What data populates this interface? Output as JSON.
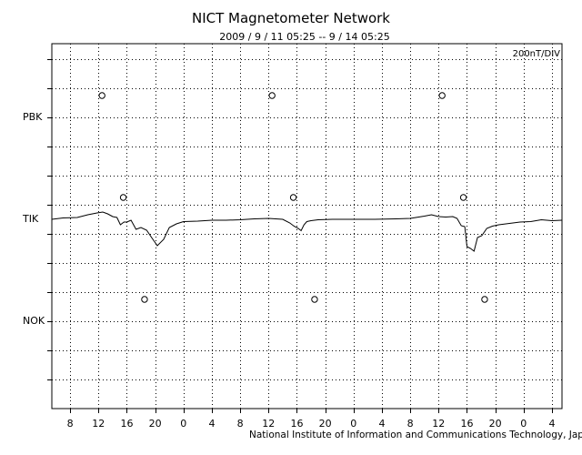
{
  "header": {
    "title": "NICT Magnetometer Network",
    "subtitle": "2009 / 9 / 11   05:25 --  9 / 14   05:25",
    "scale": "200nT/DIV",
    "credit": "National Institute of Information and Communications Technology, Japan"
  },
  "chart_data": {
    "type": "line",
    "title": "NICT Magnetometer Network",
    "subtitle": "2009 / 9 / 11   05:25 --  9 / 14   05:25",
    "scale_label": "200nT/DIV",
    "x_tick_labels": [
      "8",
      "12",
      "16",
      "20",
      "0",
      "4",
      "8",
      "12",
      "16",
      "20",
      "0",
      "4",
      "8",
      "12",
      "16",
      "20",
      "0",
      "4"
    ],
    "x_range_hours": [
      5.4167,
      77.4167
    ],
    "x_tick_hours": [
      8,
      12,
      16,
      20,
      24,
      28,
      32,
      36,
      40,
      44,
      48,
      52,
      56,
      60,
      64,
      68,
      72,
      76
    ],
    "stations": [
      "PBK",
      "TIK",
      "NOK"
    ],
    "grid": true,
    "midnight_markers": {
      "PBK": [
        12.5,
        36.5,
        60.5
      ],
      "TIK": [
        15.5,
        39.5,
        63.5
      ],
      "NOK": [
        18.5,
        42.5,
        66.5
      ]
    },
    "series": [
      {
        "name": "TIK",
        "x": [
          5.4,
          7,
          9,
          10.5,
          11.8,
          12.6,
          13.3,
          14,
          14.6,
          15.1,
          15.6,
          16,
          16.6,
          17.3,
          18,
          18.8,
          19.5,
          20.3,
          21.2,
          22,
          23,
          24,
          26,
          28,
          30,
          32,
          34,
          36,
          38,
          39,
          39.6,
          40.2,
          40.6,
          41,
          41.4,
          42,
          43,
          45,
          48,
          51,
          54,
          56,
          58,
          59,
          60,
          61,
          62,
          62.6,
          63.2,
          63.7,
          64,
          64.5,
          65,
          65.5,
          66.1,
          66.8,
          67.6,
          68.5,
          69.5,
          70.5,
          71.5,
          73,
          74.5,
          76,
          77.4
        ],
        "y": [
          0,
          3,
          4,
          10,
          14,
          16,
          12,
          6,
          4,
          -12,
          -6,
          -6,
          -2,
          -22,
          -18,
          -24,
          -40,
          -58,
          -44,
          -18,
          -10,
          -5,
          -4,
          -2,
          -2,
          -1,
          1,
          2,
          0,
          -8,
          -15,
          -20,
          -25,
          -12,
          -5,
          -3,
          -1,
          0,
          0,
          0,
          1,
          2,
          7,
          10,
          6,
          5,
          6,
          2,
          -14,
          -16,
          -60,
          -64,
          -70,
          -40,
          -36,
          -20,
          -15,
          -12,
          -10,
          -8,
          -6,
          -5,
          -1,
          -3,
          -2
        ]
      }
    ]
  }
}
